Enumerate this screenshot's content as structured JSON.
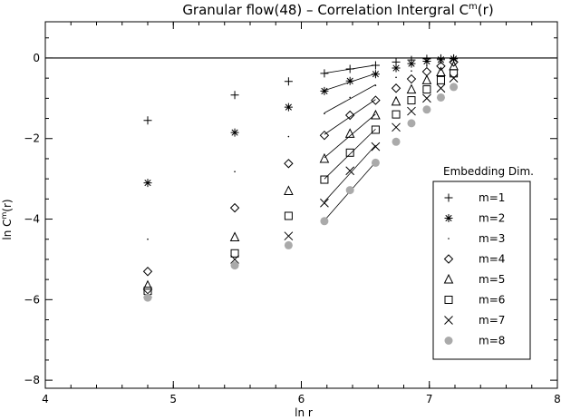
{
  "chart_data": {
    "type": "scatter",
    "title": "Granular flow(48) – Correlation Intergral C",
    "title_sup": "m",
    "title_tail": "(r)",
    "xlabel": "ln r",
    "ylabel": "ln C",
    "ylabel_sup": "m",
    "ylabel_tail": "(r)",
    "xlim": [
      4,
      8
    ],
    "ylim": [
      -8.2,
      0.9
    ],
    "xticks": [
      4,
      5,
      6,
      7,
      8
    ],
    "yticks": [
      -8,
      -6,
      -4,
      -2,
      0
    ],
    "xtick_labels": [
      "4",
      "5",
      "6",
      "7",
      "8"
    ],
    "ytick_labels": [
      "−8",
      "−6",
      "−4",
      "−2",
      "0"
    ],
    "hline": 0,
    "grid": false,
    "legend": {
      "title": "Embedding Dim.",
      "placement": "right",
      "entries": [
        "m=1",
        "m=2",
        "m=3",
        "m=4",
        "m=5",
        "m=6",
        "m=7",
        "m=8"
      ]
    },
    "fit_range": [
      6.18,
      6.58
    ],
    "x": [
      4.8,
      5.48,
      5.9,
      6.18,
      6.38,
      6.58,
      6.74,
      6.86,
      6.98,
      7.09,
      7.19
    ],
    "series": [
      {
        "name": "m=1",
        "marker": "plus",
        "values": [
          -1.55,
          -0.92,
          -0.58,
          -0.38,
          -0.27,
          -0.18,
          -0.1,
          -0.05,
          -0.02,
          -0.01,
          -0.01
        ]
      },
      {
        "name": "m=2",
        "marker": "asterisk",
        "values": [
          -3.1,
          -1.85,
          -1.22,
          -0.82,
          -0.57,
          -0.4,
          -0.25,
          -0.14,
          -0.08,
          -0.04,
          -0.02
        ]
      },
      {
        "name": "m=3",
        "marker": "dot",
        "values": [
          -4.5,
          -2.82,
          -1.95,
          -1.38,
          -0.98,
          -0.68,
          -0.48,
          -0.32,
          -0.2,
          -0.1,
          -0.05
        ]
      },
      {
        "name": "m=4",
        "marker": "diamond",
        "values": [
          -5.3,
          -3.72,
          -2.62,
          -1.92,
          -1.42,
          -1.05,
          -0.75,
          -0.52,
          -0.34,
          -0.2,
          -0.1
        ]
      },
      {
        "name": "m=5",
        "marker": "triangle",
        "values": [
          -5.65,
          -4.45,
          -3.3,
          -2.5,
          -1.88,
          -1.42,
          -1.08,
          -0.78,
          -0.55,
          -0.35,
          -0.2
        ]
      },
      {
        "name": "m=6",
        "marker": "square",
        "values": [
          -5.78,
          -4.85,
          -3.92,
          -3.02,
          -2.35,
          -1.78,
          -1.4,
          -1.05,
          -0.78,
          -0.55,
          -0.38
        ]
      },
      {
        "name": "m=7",
        "marker": "cross",
        "values": [
          -5.85,
          -5.0,
          -4.42,
          -3.6,
          -2.8,
          -2.2,
          -1.72,
          -1.32,
          -1.0,
          -0.75,
          -0.5
        ]
      },
      {
        "name": "m=8",
        "marker": "disc",
        "values": [
          -5.95,
          -5.15,
          -4.65,
          -4.05,
          -3.28,
          -2.6,
          -2.08,
          -1.62,
          -1.28,
          -0.98,
          -0.72
        ]
      }
    ]
  }
}
